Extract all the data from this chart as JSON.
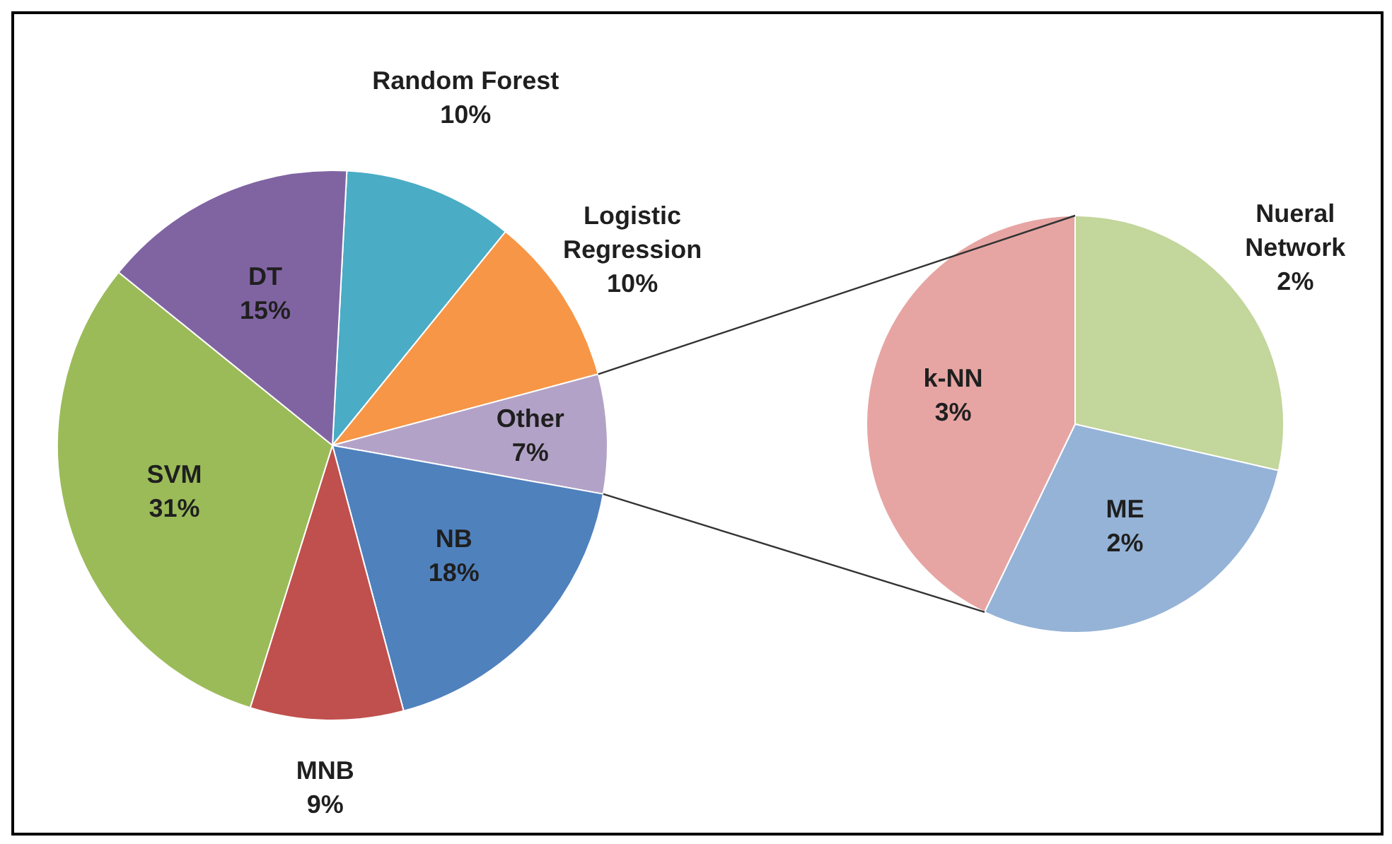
{
  "chart_data": [
    {
      "type": "pie",
      "categories": [
        "Random Forest",
        "Logistic Regression",
        "Other",
        "NB",
        "MNB",
        "SVM",
        "DT"
      ],
      "values": [
        10,
        10,
        7,
        18,
        9,
        31,
        15
      ],
      "value_labels": [
        "10%",
        "10%",
        "7%",
        "18%",
        "9%",
        "31%",
        "15%"
      ],
      "colors": [
        "#4bacc6",
        "#f79646",
        "#b3a2c7",
        "#4f81bd",
        "#c0504d",
        "#9bbb59",
        "#8064a2"
      ],
      "data_labels": true
    },
    {
      "type": "pie",
      "categories": [
        "Nueral Network",
        "ME",
        "k-NN"
      ],
      "values": [
        2,
        2,
        3
      ],
      "value_labels": [
        "2%",
        "2%",
        "3%"
      ],
      "colors": [
        "#c3d69b",
        "#95b3d7",
        "#e6a5a3"
      ],
      "data_labels": true
    }
  ]
}
